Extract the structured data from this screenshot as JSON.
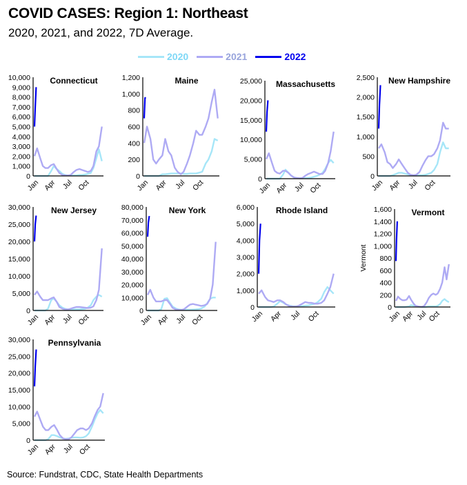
{
  "title": "COVID CASES: Region 1: Northeast",
  "subtitle": "2020, 2021, and 2022, 7D Average.",
  "source": "Source: Fundstrat, CDC, State Health Departments",
  "legend": [
    {
      "label": "2020",
      "color": "#a6e6f8",
      "text_color": "#7fd8f6"
    },
    {
      "label": "2021",
      "color": "#aeaaf4",
      "text_color": "#98a4dc"
    },
    {
      "label": "2022",
      "color": "#0000ee",
      "text_color": "#0000ee"
    }
  ],
  "chart_data": {
    "type": "line",
    "x": [
      "Jan 1",
      "Jan 15",
      "Feb 1",
      "Feb 15",
      "Mar 1",
      "Mar 15",
      "Apr 1",
      "Apr 15",
      "May 1",
      "May 15",
      "Jun 1",
      "Jun 15",
      "Jul 1",
      "Jul 15",
      "Aug 1",
      "Aug 15",
      "Sep 1",
      "Sep 15",
      "Oct 1",
      "Oct 15",
      "Nov 1",
      "Nov 15",
      "Dec 1",
      "Dec 15",
      "Dec 31"
    ],
    "x_2022": [
      "Jan 1",
      "Jan 5",
      "Jan 10"
    ],
    "x_ticks": [
      "Jan",
      "Apr",
      "Jul",
      "Oct"
    ],
    "panels": [
      {
        "title": "Connecticut",
        "ylim": [
          0,
          10000
        ],
        "ystep": 1000,
        "ylabel": "",
        "series": [
          {
            "name": "2020",
            "values": [
              0,
              0,
              0,
              0,
              0,
              0,
              500,
              1000,
              700,
              500,
              200,
              100,
              50,
              50,
              50,
              50,
              100,
              100,
              150,
              200,
              300,
              800,
              1800,
              2700,
              1500
            ]
          },
          {
            "name": "2021",
            "values": [
              2000,
              2800,
              1800,
              1000,
              800,
              800,
              1100,
              1200,
              700,
              300,
              100,
              50,
              50,
              100,
              400,
              600,
              700,
              600,
              500,
              400,
              500,
              1000,
              2500,
              3000,
              5000
            ]
          },
          {
            "name": "2022",
            "values": [
              5000,
              7000,
              9000
            ]
          }
        ]
      },
      {
        "title": "Maine",
        "ylim": [
          0,
          1200
        ],
        "ystep": 200,
        "ylabel": "",
        "series": [
          {
            "name": "2020",
            "values": [
              0,
              0,
              0,
              0,
              0,
              0,
              20,
              20,
              25,
              30,
              30,
              30,
              30,
              25,
              25,
              30,
              30,
              30,
              40,
              50,
              150,
              200,
              300,
              450,
              430
            ]
          },
          {
            "name": "2021",
            "values": [
              400,
              600,
              450,
              200,
              150,
              200,
              250,
              450,
              300,
              250,
              100,
              50,
              20,
              50,
              150,
              250,
              400,
              550,
              500,
              500,
              600,
              700,
              900,
              1050,
              700
            ]
          },
          {
            "name": "2022",
            "values": [
              700,
              950,
              950
            ]
          }
        ]
      },
      {
        "title": "Massachusetts",
        "ylim": [
          0,
          25000
        ],
        "ystep": 5000,
        "ylabel": "",
        "series": [
          {
            "name": "2020",
            "values": [
              0,
              0,
              0,
              0,
              0,
              0,
              1000,
              2300,
              1500,
              800,
              300,
              200,
              100,
              100,
              150,
              200,
              300,
              500,
              700,
              1000,
              1500,
              2500,
              4000,
              4800,
              4000
            ]
          },
          {
            "name": "2021",
            "values": [
              5000,
              6500,
              4000,
              2000,
              1500,
              1300,
              2000,
              2000,
              1500,
              800,
              300,
              200,
              100,
              200,
              800,
              1200,
              1500,
              1800,
              1500,
              1200,
              1200,
              2000,
              4000,
              7000,
              12000
            ]
          },
          {
            "name": "2022",
            "values": [
              12000,
              17000,
              20000
            ]
          }
        ]
      },
      {
        "title": "New Hampshire",
        "ylim": [
          0,
          2500
        ],
        "ystep": 500,
        "ylabel": "",
        "series": [
          {
            "name": "2020",
            "values": [
              0,
              0,
              0,
              0,
              0,
              20,
              50,
              80,
              80,
              60,
              40,
              20,
              10,
              10,
              20,
              20,
              30,
              50,
              80,
              150,
              300,
              600,
              850,
              700,
              700
            ]
          },
          {
            "name": "2021",
            "values": [
              700,
              800,
              600,
              350,
              300,
              200,
              300,
              420,
              300,
              200,
              80,
              30,
              20,
              30,
              100,
              250,
              400,
              500,
              500,
              550,
              700,
              900,
              1350,
              1200,
              1200
            ]
          },
          {
            "name": "2022",
            "values": [
              1200,
              1800,
              2300
            ]
          }
        ]
      },
      {
        "title": "New Jersey",
        "ylim": [
          0,
          30000
        ],
        "ystep": 5000,
        "ylabel": "",
        "series": [
          {
            "name": "2020",
            "values": [
              0,
              0,
              0,
              0,
              0,
              500,
              3000,
              3500,
              2500,
              1500,
              800,
              500,
              300,
              300,
              300,
              300,
              300,
              400,
              500,
              800,
              1500,
              3000,
              4000,
              4500,
              4000
            ]
          },
          {
            "name": "2021",
            "values": [
              4500,
              5500,
              4000,
              3000,
              3000,
              3000,
              3500,
              3800,
              2500,
              1000,
              500,
              300,
              300,
              500,
              800,
              1000,
              1000,
              900,
              800,
              700,
              800,
              1200,
              3000,
              6000,
              18000
            ]
          },
          {
            "name": "2022",
            "values": [
              20000,
              25000,
              27500
            ]
          }
        ]
      },
      {
        "title": "New York",
        "ylim": [
          0,
          80000
        ],
        "ystep": 10000,
        "ylabel": "",
        "series": [
          {
            "name": "2020",
            "values": [
              0,
              0,
              0,
              0,
              0,
              1000,
              9000,
              9500,
              6000,
              3000,
              1500,
              800,
              600,
              600,
              600,
              600,
              700,
              800,
              1000,
              1500,
              3000,
              5500,
              9000,
              10000,
              10000
            ]
          },
          {
            "name": "2021",
            "values": [
              12000,
              16000,
              10000,
              7000,
              7000,
              7000,
              8000,
              8000,
              5000,
              2000,
              800,
              500,
              400,
              1000,
              3000,
              4500,
              5000,
              4500,
              4000,
              3500,
              4000,
              5000,
              9000,
              20000,
              53000
            ]
          },
          {
            "name": "2022",
            "values": [
              57000,
              68000,
              73000
            ]
          }
        ]
      },
      {
        "title": "Rhode Island",
        "ylim": [
          0,
          6000
        ],
        "ystep": 1000,
        "ylabel": "",
        "series": [
          {
            "name": "2020",
            "values": [
              0,
              0,
              0,
              0,
              0,
              30,
              200,
              350,
              250,
              150,
              80,
              50,
              40,
              40,
              60,
              80,
              100,
              150,
              200,
              300,
              500,
              900,
              1200,
              1000,
              800
            ]
          },
          {
            "name": "2021",
            "values": [
              800,
              1000,
              600,
              400,
              350,
              300,
              400,
              400,
              300,
              150,
              50,
              30,
              30,
              80,
              200,
              300,
              250,
              250,
              200,
              200,
              250,
              400,
              800,
              1200,
              2000
            ]
          },
          {
            "name": "2022",
            "values": [
              2000,
              4000,
              5000
            ]
          }
        ]
      },
      {
        "title": "Vermont",
        "ylim": [
          0,
          1600
        ],
        "ystep": 200,
        "ylabel": "Vermont",
        "series": [
          {
            "name": "2020",
            "values": [
              0,
              0,
              0,
              0,
              0,
              5,
              10,
              30,
              20,
              10,
              5,
              5,
              0,
              0,
              5,
              10,
              10,
              10,
              10,
              20,
              50,
              100,
              130,
              100,
              80
            ]
          },
          {
            "name": "2021",
            "values": [
              100,
              170,
              130,
              110,
              110,
              120,
              180,
              120,
              60,
              20,
              10,
              5,
              5,
              20,
              80,
              150,
              200,
              220,
              200,
              220,
              300,
              400,
              650,
              450,
              700
            ]
          },
          {
            "name": "2022",
            "values": [
              750,
              1100,
              1400
            ]
          }
        ]
      },
      {
        "title": "Pennsylvania",
        "ylim": [
          0,
          30000
        ],
        "ystep": 5000,
        "ylabel": "",
        "series": [
          {
            "name": "2020",
            "values": [
              0,
              0,
              0,
              0,
              0,
              300,
              1500,
              1500,
              1200,
              800,
              500,
              400,
              500,
              700,
              800,
              800,
              700,
              800,
              1200,
              2000,
              4000,
              6000,
              8000,
              9000,
              8000
            ]
          },
          {
            "name": "2021",
            "values": [
              7000,
              8500,
              6000,
              4000,
              3000,
              3000,
              4000,
              4500,
              3000,
              1500,
              500,
              300,
              300,
              800,
              2000,
              3000,
              3500,
              3500,
              3000,
              3500,
              5000,
              7000,
              9000,
              10000,
              14000
            ]
          },
          {
            "name": "2022",
            "values": [
              16000,
              22000,
              27000
            ]
          }
        ]
      }
    ]
  }
}
